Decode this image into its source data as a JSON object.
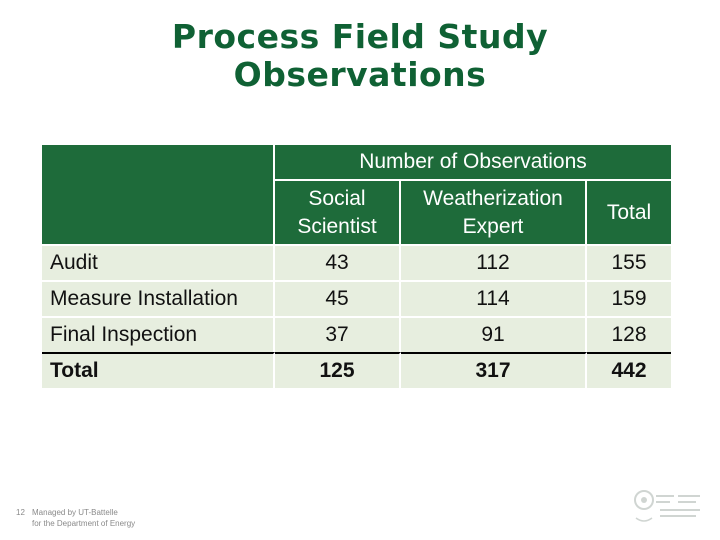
{
  "title": {
    "line1": "Process Field Study",
    "line2": "Observations"
  },
  "table": {
    "group_header": "Number of Observations",
    "columns": {
      "social": [
        "Social",
        "Scientist"
      ],
      "weatherization": [
        "Weatherization",
        "Expert"
      ],
      "total": "Total"
    },
    "rows": [
      {
        "label": "Audit",
        "social": "43",
        "weatherization": "112",
        "total": "155"
      },
      {
        "label": "Measure Installation",
        "social": "45",
        "weatherization": "114",
        "total": "159"
      },
      {
        "label": "Final Inspection",
        "social": "37",
        "weatherization": "91",
        "total": "128"
      },
      {
        "label": "Total",
        "social": "125",
        "weatherization": "317",
        "total": "442"
      }
    ]
  },
  "footer": {
    "page_number": "12",
    "managed_by": [
      "Managed by UT-Battelle",
      "for the Department of Energy"
    ]
  },
  "colors": {
    "title": "#0f6134",
    "header_bg": "#1e6b3a",
    "row_bg": "#e7eedf"
  }
}
